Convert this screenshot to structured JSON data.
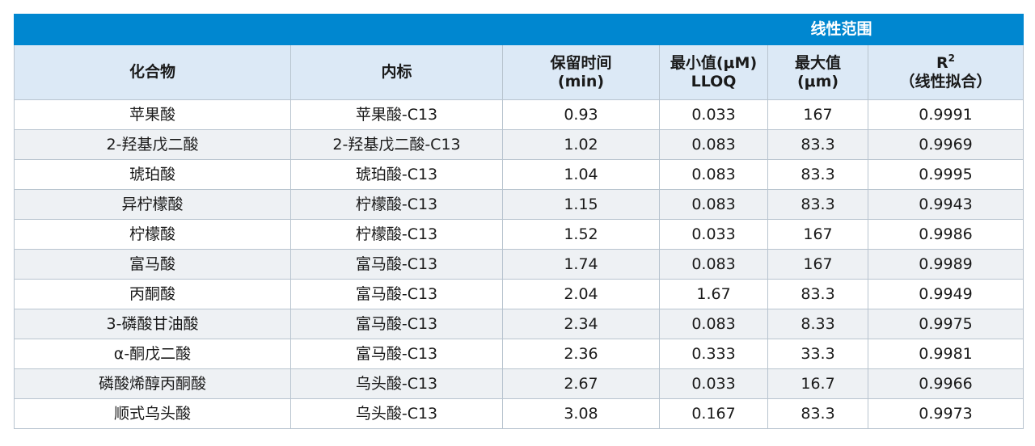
{
  "table": {
    "band_label": "线性范围",
    "headers": {
      "compound": "化合物",
      "internal_standard": "内标",
      "retention_line1": "保留时间",
      "retention_line2": "(min)",
      "min_line1": "最小值(μM)",
      "min_line2": "LLOQ",
      "max_line1": "最大值",
      "max_line2": "(μm)",
      "r2_letter": "R",
      "r2_sup": "2",
      "r2_line2": "（线性拟合）"
    },
    "rows": [
      {
        "compound": "苹果酸",
        "is": "苹果酸-C13",
        "rt": "0.93",
        "min": "0.033",
        "max": "167",
        "r2": "0.9991"
      },
      {
        "compound": "2-羟基戊二酸",
        "is": "2-羟基戊二酸-C13",
        "rt": "1.02",
        "min": "0.083",
        "max": "83.3",
        "r2": "0.9969"
      },
      {
        "compound": "琥珀酸",
        "is": "琥珀酸-C13",
        "rt": "1.04",
        "min": "0.083",
        "max": "83.3",
        "r2": "0.9995"
      },
      {
        "compound": "异柠檬酸",
        "is": "柠檬酸-C13",
        "rt": "1.15",
        "min": "0.083",
        "max": "83.3",
        "r2": "0.9943"
      },
      {
        "compound": "柠檬酸",
        "is": "柠檬酸-C13",
        "rt": "1.52",
        "min": "0.033",
        "max": "167",
        "r2": "0.9986"
      },
      {
        "compound": "富马酸",
        "is": "富马酸-C13",
        "rt": "1.74",
        "min": "0.083",
        "max": "167",
        "r2": "0.9989"
      },
      {
        "compound": "丙酮酸",
        "is": "富马酸-C13",
        "rt": "2.04",
        "min": "1.67",
        "max": "83.3",
        "r2": "0.9949"
      },
      {
        "compound": "3-磷酸甘油酸",
        "is": "富马酸-C13",
        "rt": "2.34",
        "min": "0.083",
        "max": "8.33",
        "r2": "0.9975"
      },
      {
        "compound": "α-酮戊二酸",
        "is": "富马酸-C13",
        "rt": "2.36",
        "min": "0.333",
        "max": "33.3",
        "r2": "0.9981"
      },
      {
        "compound": "磷酸烯醇丙酮酸",
        "is": "乌头酸-C13",
        "rt": "2.67",
        "min": "0.033",
        "max": "16.7",
        "r2": "0.9966"
      },
      {
        "compound": "顺式乌头酸",
        "is": "乌头酸-C13",
        "rt": "3.08",
        "min": "0.167",
        "max": "83.3",
        "r2": "0.9973"
      }
    ]
  },
  "colors": {
    "band_blue": "#0087d0",
    "header_light_blue": "#dce9f6",
    "stripe_gray": "#eef1f4",
    "grid_line": "#b8c4cf"
  }
}
